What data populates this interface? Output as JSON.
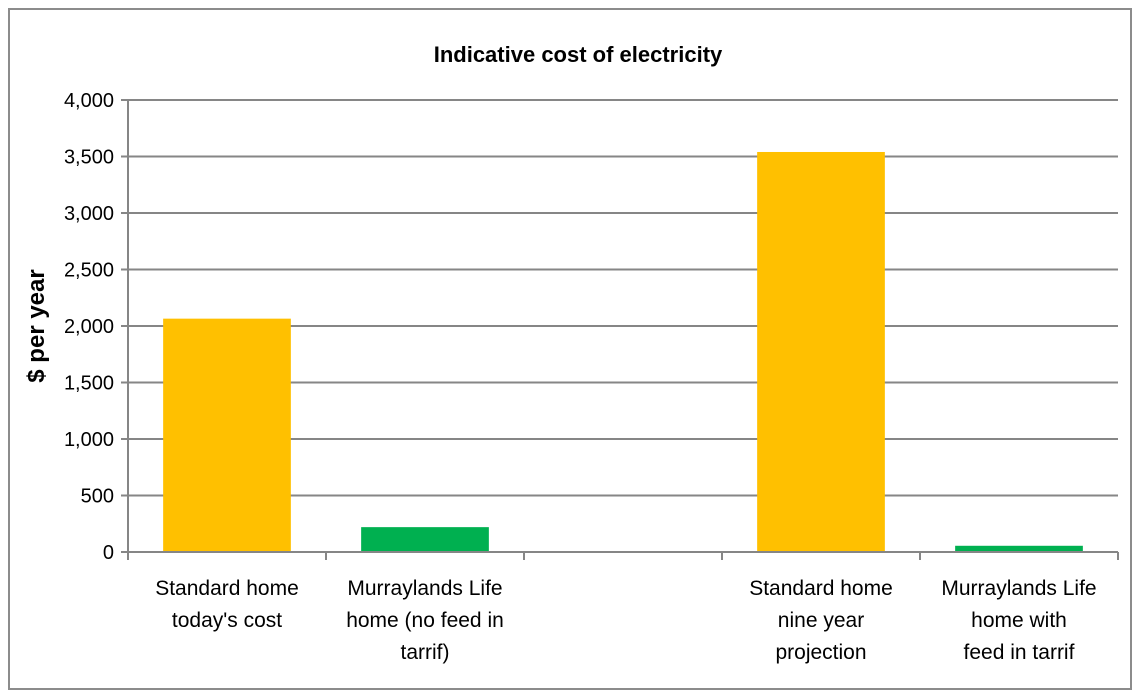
{
  "chart_data": {
    "type": "bar",
    "title": "Indicative cost of electricity",
    "xlabel": "",
    "ylabel": "$ per year",
    "ylim": [
      0,
      4000
    ],
    "yticks": [
      "0",
      "500",
      "1,000",
      "1,500",
      "2,000",
      "2,500",
      "3,000",
      "3,500",
      "4,000"
    ],
    "ytick_values": [
      0,
      500,
      1000,
      1500,
      2000,
      2500,
      3000,
      3500,
      4000
    ],
    "grid": true,
    "categories": [
      [
        "Standard home",
        "today's cost"
      ],
      [
        "Murraylands Life",
        "home (no feed in",
        "tarrif)"
      ],
      [
        ""
      ],
      [
        "Standard home",
        "nine year",
        "projection"
      ],
      [
        "Murraylands Life",
        "home with",
        "feed in tarrif"
      ]
    ],
    "values": [
      2065,
      220,
      null,
      3540,
      55
    ],
    "colors": [
      "#FFC000",
      "#00B050",
      null,
      "#FFC000",
      "#00B050"
    ]
  }
}
